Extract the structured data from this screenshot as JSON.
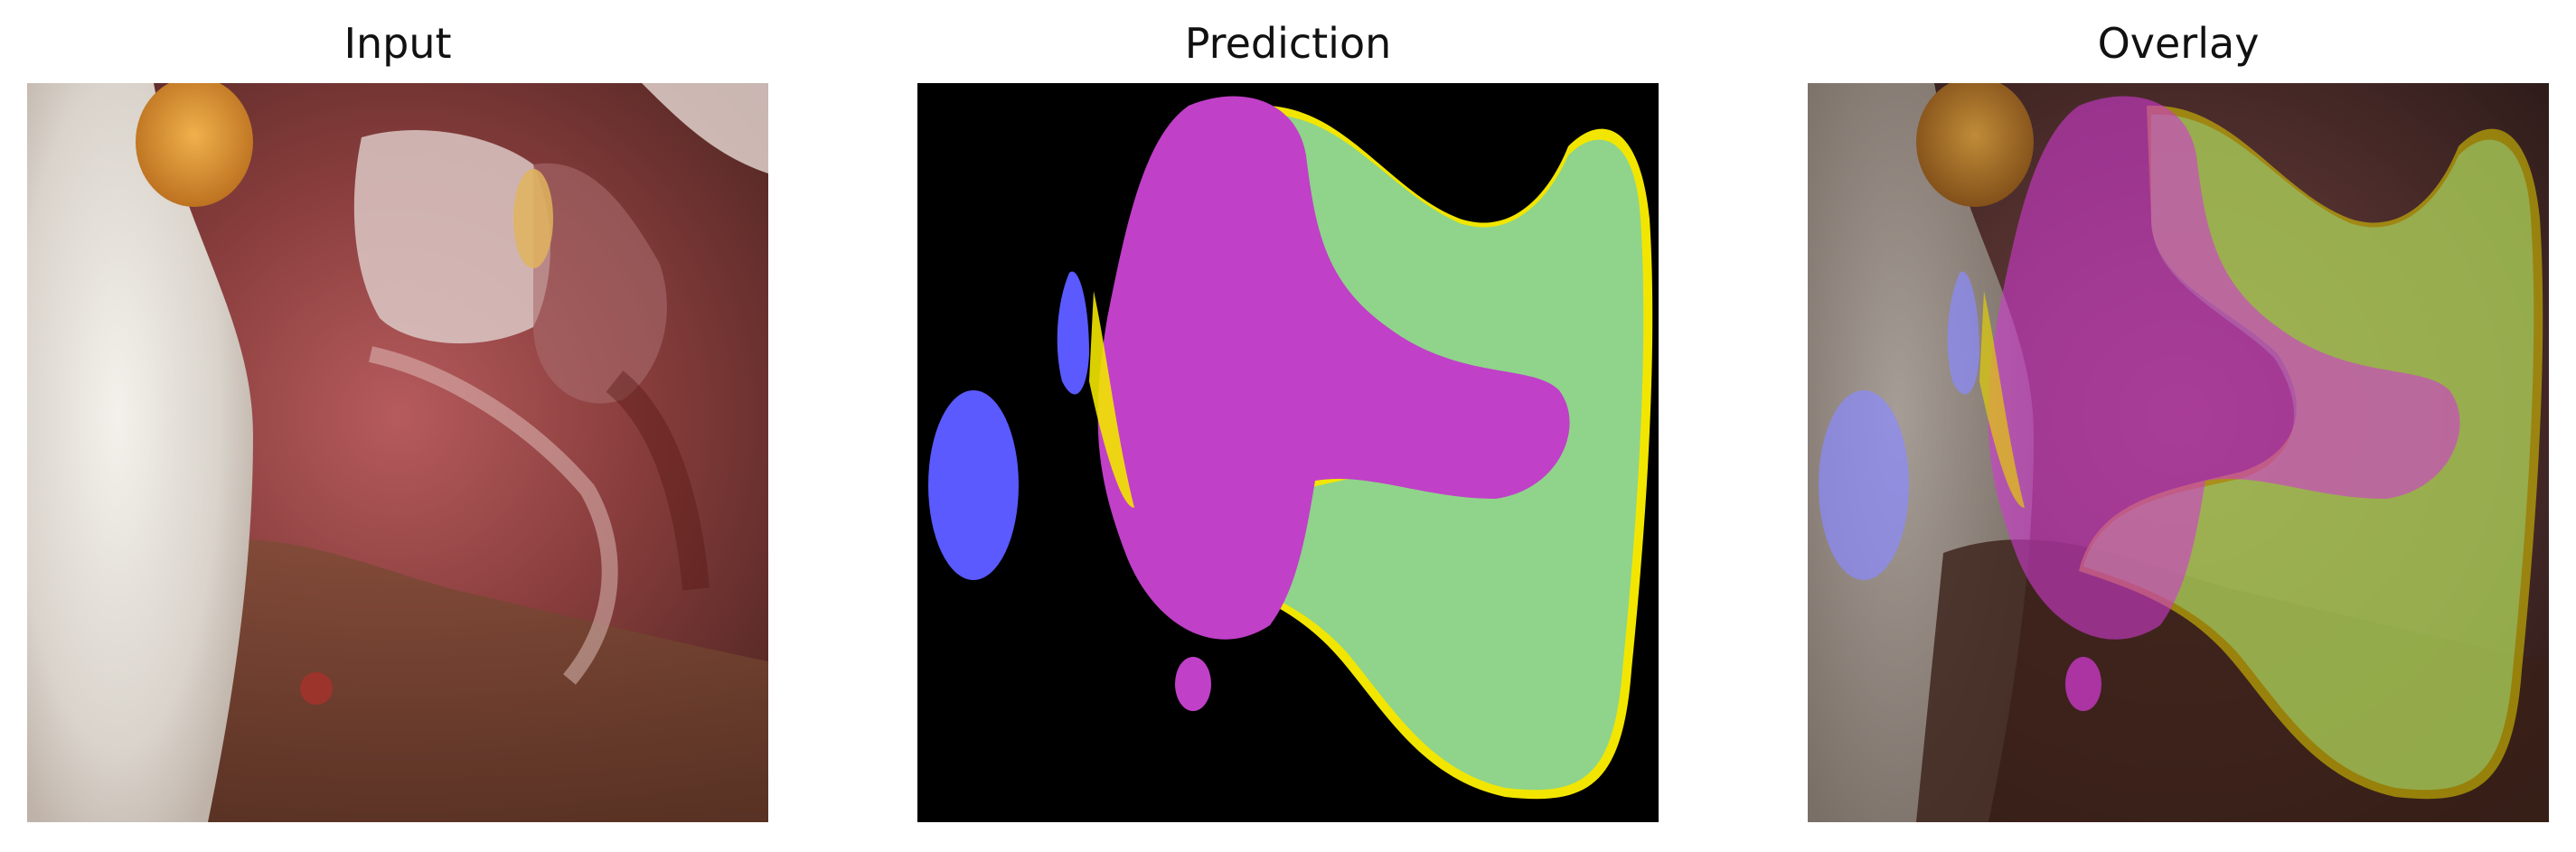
{
  "panels": [
    {
      "title": "Input"
    },
    {
      "title": "Prediction"
    },
    {
      "title": "Overlay"
    }
  ],
  "legend_colors": {
    "green_region": "#8fd48a",
    "magenta_region": "#c040c8",
    "blue_region": "#5a5aff",
    "yellow_boundary": "#f2e600",
    "background": "#000000"
  }
}
